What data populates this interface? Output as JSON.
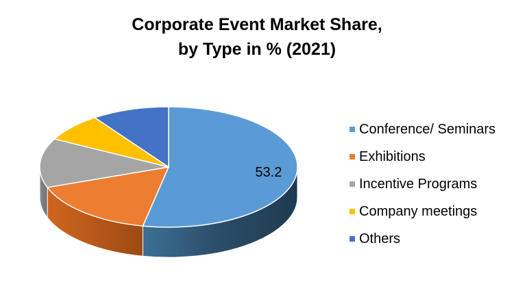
{
  "chart_data": {
    "type": "pie",
    "title_lines": [
      "Corporate Event Market Share,",
      "by Type in % (2021)"
    ],
    "categories": [
      "Conference/ Seminars",
      "Exhibitions",
      "Incentive Programs",
      "Company meetings",
      "Others"
    ],
    "values": [
      53.2,
      16.3,
      13.2,
      7.6,
      9.7
    ],
    "data_labels": [
      "53.2",
      "",
      "",
      "",
      ""
    ],
    "colors": [
      "#5b9bd5",
      "#ed7d31",
      "#a5a5a5",
      "#ffc000",
      "#4472c4"
    ],
    "legend_position": "right",
    "style": "3d"
  }
}
